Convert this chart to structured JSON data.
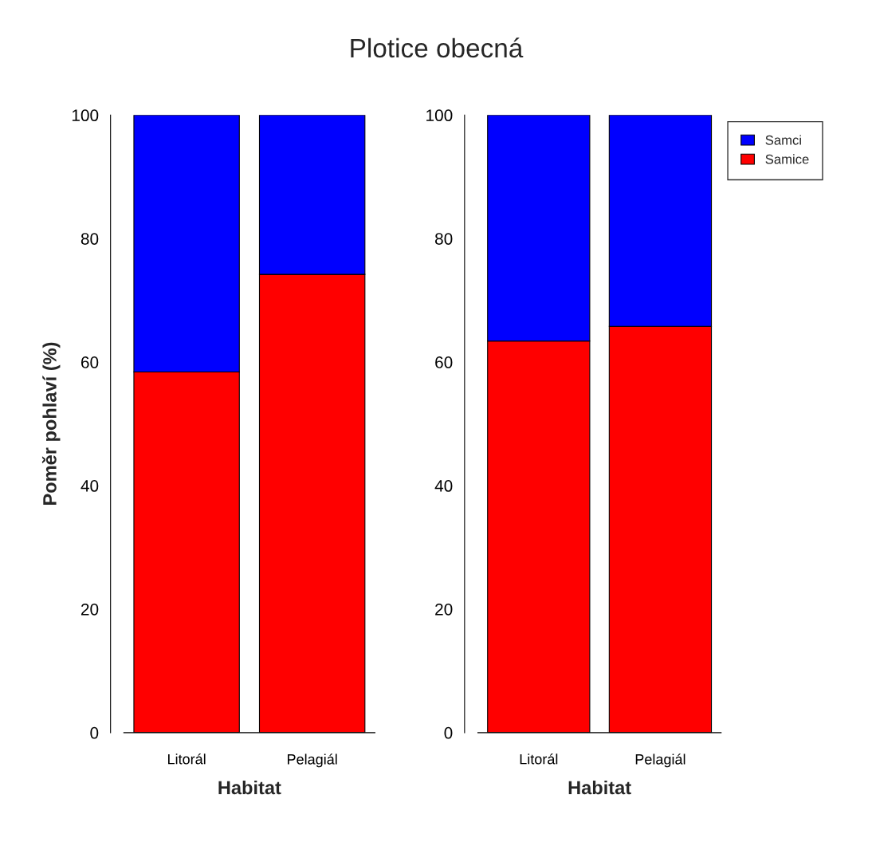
{
  "chart_data": [
    {
      "type": "bar",
      "title": "Plotice obecná",
      "xlabel": "Habitat",
      "ylabel": "Poměr pohlaví (%)",
      "categories": [
        "Litorál",
        "Pelagiál"
      ],
      "stacked": true,
      "ylim": [
        0,
        100
      ],
      "yticks": [
        0,
        20,
        40,
        60,
        80,
        100
      ],
      "grid": false,
      "legend": false,
      "series": [
        {
          "color": "#ff0000",
          "values": [
            58.4,
            74.2
          ]
        },
        {
          "color": "#0000ff",
          "values": [
            41.6,
            25.8
          ]
        }
      ]
    },
    {
      "type": "bar",
      "xlabel": "Habitat",
      "categories": [
        "Litorál",
        "Pelagiál"
      ],
      "stacked": true,
      "ylim": [
        0,
        100
      ],
      "yticks": [
        0,
        20,
        40,
        60,
        80,
        100
      ],
      "grid": false,
      "legend": "right",
      "series": [
        {
          "name": "Samice",
          "color": "#ff0000",
          "values": [
            63.4,
            65.8
          ]
        },
        {
          "name": "Samci",
          "color": "#0000ff",
          "values": [
            36.6,
            34.2
          ]
        }
      ]
    }
  ]
}
